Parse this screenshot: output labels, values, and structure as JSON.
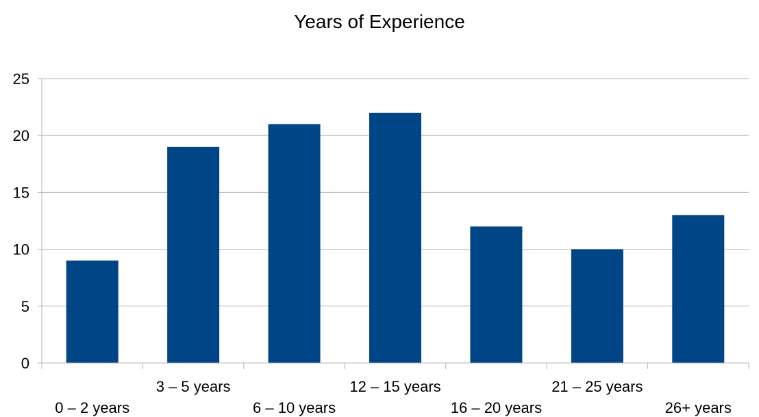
{
  "chart_data": {
    "type": "bar",
    "title": "Years of Experience",
    "xlabel": "",
    "ylabel": "",
    "categories": [
      "0 – 2 years",
      "3 – 5 years",
      "6 – 10 years",
      "12 – 15 years",
      "16 – 20 years",
      "21 – 25 years",
      "26+ years"
    ],
    "values": [
      9,
      19,
      21,
      22,
      12,
      10,
      13
    ],
    "ylim": [
      0,
      25
    ],
    "yticks": [
      "0",
      "5",
      "10",
      "15",
      "20",
      "25"
    ],
    "grid": true,
    "legend": "none",
    "colors": {
      "bar": "#004586",
      "grid": "#b3b3b3",
      "text": "#000000"
    }
  }
}
